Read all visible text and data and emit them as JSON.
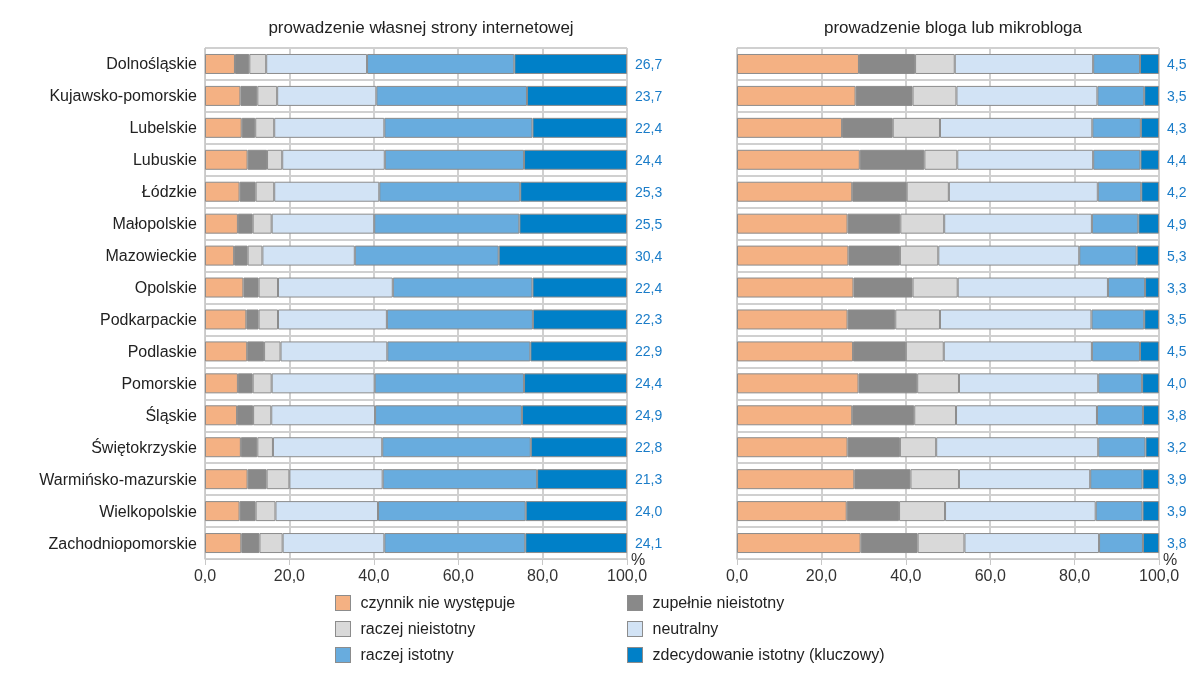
{
  "chart_data": [
    {
      "type": "bar",
      "orientation": "horizontal",
      "stacked": true,
      "title": "prowadzenie własnej strony internetowej",
      "xlabel": "%",
      "legend": "bottom",
      "grid": true,
      "categories": [
        "Dolnośląskie",
        "Kujawsko-pomorskie",
        "Lubelskie",
        "Lubuskie",
        "Łódzkie",
        "Małopolskie",
        "Mazowieckie",
        "Opolskie",
        "Podkarpackie",
        "Podlaskie",
        "Pomorskie",
        "Śląskie",
        "Świętokrzyskie",
        "Warmińsko-mazurskie",
        "Wielkopolskie",
        "Zachodniopomorskie"
      ],
      "xlim": [
        0,
        100
      ],
      "xticks": [
        {
          "value": 0,
          "label": "0,0"
        },
        {
          "value": 20,
          "label": "20,0"
        },
        {
          "value": 40,
          "label": "40,0"
        },
        {
          "value": 60,
          "label": "60,0"
        },
        {
          "value": 80,
          "label": "80,0"
        },
        {
          "value": 100,
          "label": "100,0"
        }
      ],
      "series": [
        {
          "name": "czynnik nie występuje",
          "color": "#f4b183",
          "values": [
            7.1,
            8.4,
            8.7,
            10.1,
            8.2,
            7.8,
            6.9,
            9.1,
            9.8,
            10.0,
            7.8,
            7.6,
            8.5,
            10.1,
            8.2,
            8.6
          ]
        },
        {
          "name": "zupełnie nieistotny",
          "color": "#898989",
          "values": [
            3.4,
            4.0,
            3.2,
            4.6,
            3.8,
            3.5,
            3.2,
            3.6,
            2.9,
            4.0,
            3.5,
            3.8,
            3.9,
            4.5,
            3.8,
            4.3
          ]
        },
        {
          "name": "raczej nieistotny",
          "color": "#d9d9d9",
          "values": [
            4.0,
            4.7,
            4.5,
            3.6,
            4.4,
            4.5,
            3.5,
            4.6,
            4.6,
            3.9,
            4.5,
            4.3,
            3.7,
            5.4,
            4.7,
            5.5
          ]
        },
        {
          "name": "neutralny",
          "color": "#d2e3f5",
          "values": [
            23.9,
            23.5,
            26.1,
            24.3,
            24.9,
            24.3,
            21.9,
            27.2,
            25.8,
            25.3,
            24.4,
            24.6,
            25.9,
            22.1,
            24.3,
            24.1
          ]
        },
        {
          "name": "raczej istotny",
          "color": "#68acde",
          "values": [
            34.9,
            35.7,
            35.1,
            33.0,
            33.4,
            34.4,
            34.1,
            33.1,
            34.6,
            33.9,
            35.4,
            34.8,
            35.2,
            36.6,
            35.0,
            33.4
          ]
        },
        {
          "name": "zdecydowanie istotny (kluczowy)",
          "color": "#0080c8",
          "values": [
            26.7,
            23.7,
            22.4,
            24.4,
            25.3,
            25.5,
            30.4,
            22.4,
            22.3,
            22.9,
            24.4,
            24.9,
            22.8,
            21.3,
            24.0,
            24.1
          ],
          "value_labels": [
            "26,7",
            "23,7",
            "22,4",
            "24,4",
            "25,3",
            "25,5",
            "30,4",
            "22,4",
            "22,3",
            "22,9",
            "24,4",
            "24,9",
            "22,8",
            "21,3",
            "24,0",
            "24,1"
          ]
        }
      ]
    },
    {
      "type": "bar",
      "orientation": "horizontal",
      "stacked": true,
      "title": "prowadzenie bloga lub mikrobloga",
      "xlabel": "%",
      "grid": true,
      "tick_labels": "x",
      "categories": [
        null,
        null,
        null,
        null,
        null,
        null,
        null,
        null,
        null,
        null,
        null,
        null,
        null,
        null,
        null,
        null
      ],
      "xlim": [
        0,
        100
      ],
      "xticks": [
        {
          "value": 0,
          "label": "0,0"
        },
        {
          "value": 20,
          "label": "20,0"
        },
        {
          "value": 40,
          "label": "40,0"
        },
        {
          "value": 60,
          "label": "60,0"
        },
        {
          "value": 80,
          "label": "80,0"
        },
        {
          "value": 100,
          "label": "100,0"
        }
      ],
      "series": [
        {
          "color": "#f4b183",
          "values": [
            28.9,
            28.1,
            24.9,
            29.1,
            27.3,
            26.2,
            26.4,
            27.6,
            26.2,
            27.5,
            28.8,
            27.3,
            26.2,
            27.8,
            26.0,
            29.3
          ]
        },
        {
          "color": "#898989",
          "values": [
            13.3,
            13.5,
            12.0,
            15.3,
            12.9,
            12.5,
            12.2,
            14.0,
            11.3,
            12.5,
            13.9,
            14.7,
            12.4,
            13.3,
            12.4,
            13.5
          ]
        },
        {
          "color": "#d9d9d9",
          "values": [
            9.4,
            10.4,
            11.2,
            7.8,
            10.0,
            10.4,
            9.1,
            10.7,
            10.6,
            9.0,
            9.9,
            9.9,
            8.6,
            11.5,
            10.9,
            11.1
          ]
        },
        {
          "color": "#d2e3f5",
          "values": [
            32.8,
            33.4,
            36.1,
            32.2,
            35.3,
            35.0,
            33.4,
            35.6,
            35.9,
            35.1,
            33.0,
            33.4,
            38.4,
            31.1,
            35.7,
            31.9
          ]
        },
        {
          "color": "#68acde",
          "values": [
            11.1,
            11.1,
            11.5,
            11.2,
            10.3,
            11.0,
            13.6,
            8.8,
            12.5,
            11.4,
            10.4,
            10.9,
            11.2,
            12.4,
            11.1,
            10.4
          ]
        },
        {
          "color": "#0080c8",
          "values": [
            4.5,
            3.5,
            4.3,
            4.4,
            4.2,
            4.9,
            5.3,
            3.3,
            3.5,
            4.5,
            4.0,
            3.8,
            3.2,
            3.9,
            3.9,
            3.8
          ],
          "value_labels": [
            "4,5",
            "3,5",
            "4,3",
            "4,4",
            "4,2",
            "4,9",
            "5,3",
            "3,3",
            "3,5",
            "4,5",
            "4,0",
            "3,8",
            "3,2",
            "3,9",
            "3,9",
            "3,8"
          ]
        }
      ]
    }
  ]
}
